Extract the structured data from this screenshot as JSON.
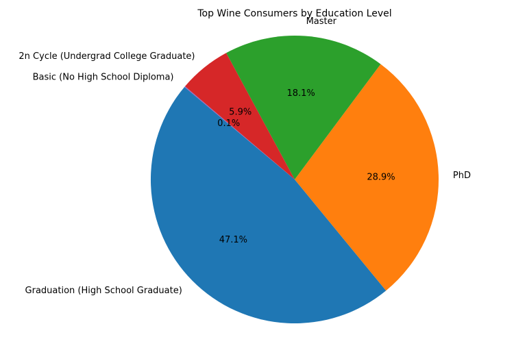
{
  "chart_data": {
    "type": "pie",
    "title": "Top Wine Consumers by Education Level",
    "start_angle_deg": 140,
    "direction": "counterclockwise",
    "slices": [
      {
        "label": "Graduation (High School Graduate)",
        "value": 47.1,
        "pct_label": "47.1%",
        "color": "#1f77b4"
      },
      {
        "label": "PhD",
        "value": 28.9,
        "pct_label": "28.9%",
        "color": "#ff7f0e"
      },
      {
        "label": "Master",
        "value": 18.1,
        "pct_label": "18.1%",
        "color": "#2ca02c"
      },
      {
        "label": "2n Cycle (Undergrad College Graduate)",
        "value": 5.9,
        "pct_label": "5.9%",
        "color": "#d62728"
      },
      {
        "label": "Basic (No High School Diploma)",
        "value": 0.1,
        "pct_label": "0.1%",
        "color": "#9467bd"
      }
    ]
  }
}
